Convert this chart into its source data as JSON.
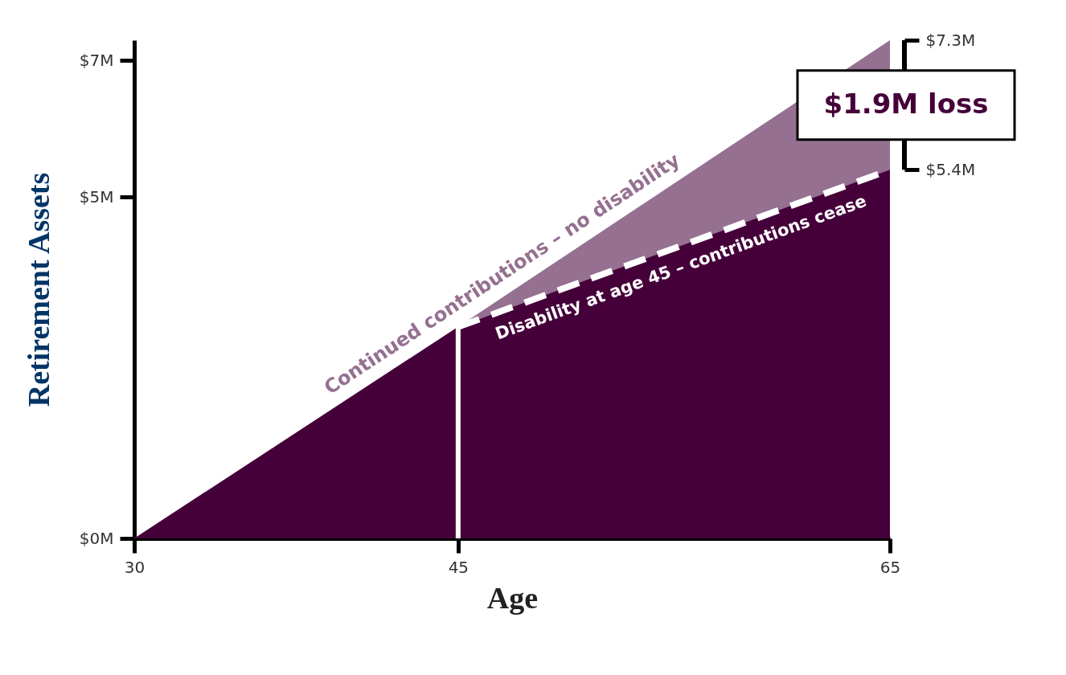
{
  "chart_data": {
    "type": "area",
    "xlabel": "Age",
    "ylabel": "Retirement Assets",
    "x": [
      30,
      45,
      65
    ],
    "series": [
      {
        "name": "Continued contributions – no disability",
        "color": "#957090",
        "values": [
          0,
          3.1,
          7.3
        ]
      },
      {
        "name": "Disability at age 45 – contributions cease",
        "color": "#45003a",
        "values": [
          0,
          3.1,
          5.4
        ],
        "line_style": "dashed"
      }
    ],
    "xlim": [
      30,
      65
    ],
    "xticks": [
      30,
      45,
      65
    ],
    "ylim": [
      0,
      7.3
    ],
    "yticks": [
      {
        "value": 0,
        "label": "$0M"
      },
      {
        "value": 5,
        "label": "$5M"
      },
      {
        "value": 7,
        "label": "$7M"
      }
    ],
    "y2lim": [
      0,
      7.3
    ],
    "y2ticks": [
      {
        "value": 5.4,
        "label": "$5.4M"
      },
      {
        "value": 7.3,
        "label": "$7.3M"
      }
    ],
    "ref_lines": [
      {
        "axis": "x",
        "value": 45,
        "color": "#ffffff"
      }
    ],
    "annotations": [
      "$1.9M loss"
    ]
  }
}
